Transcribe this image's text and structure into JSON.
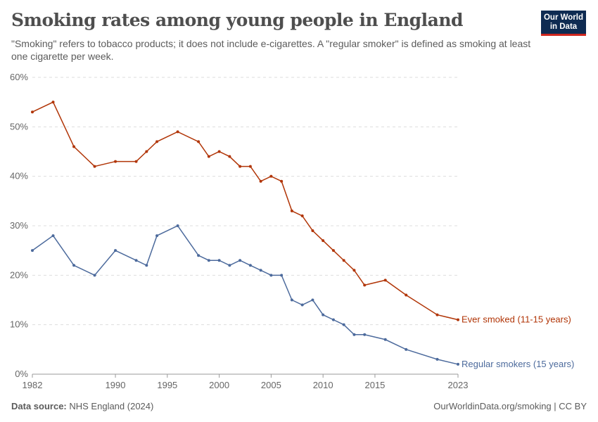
{
  "header": {
    "title": "Smoking rates among young people in England",
    "subtitle": "\"Smoking\" refers to tobacco products; it does not include e-cigarettes. A \"regular smoker\" is defined as smoking at least one cigarette per week.",
    "logo": "Our World in Data"
  },
  "footer": {
    "source_label": "Data source:",
    "source": "NHS England (2024)",
    "credit": "OurWorldinData.org/smoking | CC BY"
  },
  "chart_data": {
    "type": "line",
    "xlim": [
      1982,
      2023
    ],
    "ylim": [
      0,
      60
    ],
    "x_ticks": [
      1982,
      1990,
      1995,
      2000,
      2005,
      2010,
      2015,
      2023
    ],
    "y_ticks": [
      0,
      10,
      20,
      30,
      40,
      50,
      60
    ],
    "y_tick_labels": [
      "0%",
      "10%",
      "20%",
      "30%",
      "40%",
      "50%",
      "60%"
    ],
    "grid": "horizontal dashed",
    "series": [
      {
        "name": "Ever smoked (11-15 years)",
        "color": "#b13507",
        "x": [
          1982,
          1984,
          1986,
          1988,
          1990,
          1992,
          1993,
          1994,
          1996,
          1998,
          1999,
          2000,
          2001,
          2002,
          2003,
          2004,
          2005,
          2006,
          2007,
          2008,
          2009,
          2010,
          2011,
          2012,
          2013,
          2014,
          2016,
          2018,
          2021,
          2023
        ],
        "values": [
          53,
          55,
          46,
          42,
          43,
          43,
          45,
          47,
          49,
          47,
          44,
          45,
          44,
          42,
          42,
          39,
          40,
          39,
          33,
          32,
          29,
          27,
          25,
          23,
          21,
          18,
          19,
          16,
          12,
          11
        ]
      },
      {
        "name": "Regular smokers (15 years)",
        "color": "#4c6a9c",
        "x": [
          1982,
          1984,
          1986,
          1988,
          1990,
          1992,
          1993,
          1994,
          1996,
          1998,
          1999,
          2000,
          2001,
          2002,
          2003,
          2004,
          2005,
          2006,
          2007,
          2008,
          2009,
          2010,
          2011,
          2012,
          2013,
          2014,
          2016,
          2018,
          2021,
          2023
        ],
        "values": [
          25,
          28,
          22,
          20,
          25,
          23,
          22,
          28,
          30,
          24,
          23,
          23,
          22,
          23,
          22,
          21,
          20,
          20,
          15,
          14,
          15,
          12,
          11,
          10,
          8,
          8,
          7,
          5,
          3,
          2
        ]
      }
    ]
  }
}
